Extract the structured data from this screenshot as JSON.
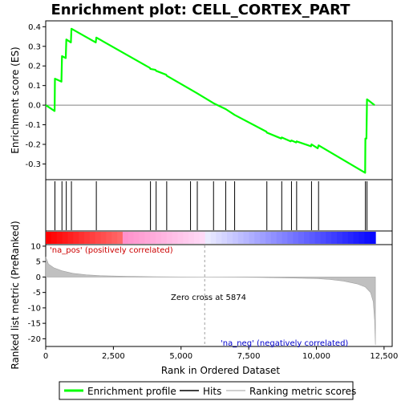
{
  "chart_data": {
    "type": "line",
    "title": "Enrichment plot: CELL_CORTEX_PART",
    "top_panel": {
      "ylabel": "Enrichment score (ES)",
      "ylim": [
        -0.38,
        0.43
      ],
      "yticks": [
        "0.4",
        "0.3",
        "0.2",
        "0.1",
        "0.0",
        "-0.1",
        "-0.2",
        "-0.3"
      ],
      "ytick_values": [
        0.4,
        0.3,
        0.2,
        0.1,
        0.0,
        -0.1,
        -0.2,
        -0.3
      ],
      "series": [
        {
          "name": "Enrichment profile",
          "color": "#00ff00",
          "x": [
            0,
            330,
            340,
            580,
            600,
            740,
            760,
            930,
            950,
            1850,
            1870,
            3850,
            3870,
            4050,
            4080,
            4450,
            4470,
            5350,
            5600,
            6200,
            6650,
            6980,
            8150,
            8170,
            8700,
            8720,
            9050,
            9080,
            9250,
            9270,
            9800,
            9820,
            10050,
            10080,
            11800,
            11810,
            11850,
            11870,
            12150
          ],
          "y": [
            0.0,
            -0.03,
            0.135,
            0.12,
            0.25,
            0.24,
            0.335,
            0.32,
            0.39,
            0.32,
            0.345,
            0.19,
            0.185,
            0.18,
            0.175,
            0.155,
            0.15,
            0.08,
            0.06,
            0.01,
            -0.02,
            -0.05,
            -0.135,
            -0.14,
            -0.17,
            -0.165,
            -0.185,
            -0.18,
            -0.19,
            -0.185,
            -0.21,
            -0.2,
            -0.22,
            -0.205,
            -0.345,
            -0.17,
            -0.17,
            0.03,
            0.0
          ]
        }
      ]
    },
    "hits": {
      "name": "Hits",
      "x": [
        340,
        600,
        760,
        950,
        1870,
        3870,
        4080,
        4470,
        5350,
        5600,
        6200,
        6650,
        6980,
        8170,
        8720,
        9080,
        9270,
        9820,
        10080,
        11810,
        11870
      ]
    },
    "ranked_metric": {
      "name": "Ranking metric scores",
      "ylabel": "Ranked list metric (PreRanked)",
      "ylim": [
        -22.5,
        10.5
      ],
      "yticks": [
        "10",
        "5",
        "0",
        "-5",
        "-10",
        "-15",
        "-20"
      ],
      "ytick_values": [
        10,
        5,
        0,
        -5,
        -10,
        -15,
        -20
      ],
      "profile_x": [
        0,
        100,
        300,
        600,
        1000,
        1500,
        2000,
        3000,
        4000,
        5000,
        5874,
        7000,
        8000,
        9000,
        10000,
        10500,
        11000,
        11500,
        11800,
        12000,
        12100,
        12150,
        12180
      ],
      "profile_y": [
        6.5,
        4.2,
        3.0,
        2.0,
        1.2,
        0.7,
        0.45,
        0.2,
        0.08,
        0.02,
        0.0,
        -0.05,
        -0.15,
        -0.3,
        -0.5,
        -0.8,
        -1.3,
        -2.2,
        -3.2,
        -5.0,
        -8.0,
        -14.0,
        -22.0
      ],
      "zero_cross_x": 5874,
      "zero_cross_label": "Zero cross at 5874",
      "pos_label": "'na_pos' (positively correlated)",
      "neg_label": "'na_neg' (negatively correlated)"
    },
    "x_axis": {
      "label": "Rank in Ordered Dataset",
      "xlim": [
        0,
        12800
      ],
      "xticks": [
        "0",
        "2,500",
        "5,000",
        "7,500",
        "10,000",
        "12,500"
      ],
      "xtick_values": [
        0,
        2500,
        5000,
        7500,
        10000,
        12500
      ],
      "dataset_size": 12180
    },
    "legend": {
      "placement": "bottom",
      "entries": [
        {
          "label": "Enrichment profile",
          "color": "#00ff00",
          "kind": "line"
        },
        {
          "label": "Hits",
          "color": "#000000",
          "kind": "line"
        },
        {
          "label": "Ranking metric scores",
          "color": "#c0c0c0",
          "kind": "line"
        }
      ]
    },
    "colors": {
      "es_line": "#00ff00",
      "hit": "#000000",
      "metric_fill": "#c0c0c0",
      "pos_text": "#cc0000",
      "neg_text": "#0000cc",
      "zero_line": "#c0c0c0"
    }
  }
}
